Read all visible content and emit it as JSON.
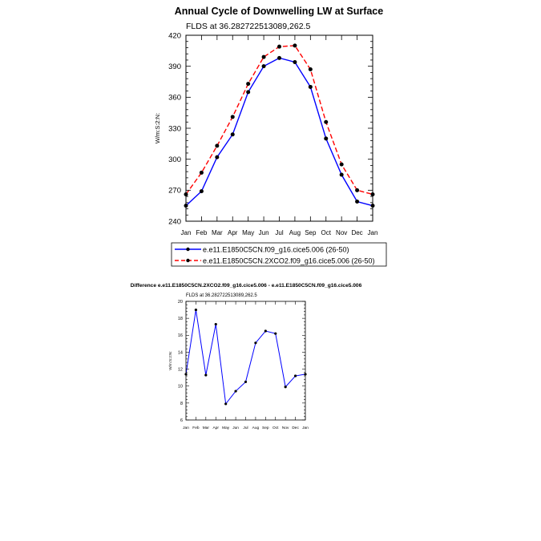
{
  "chart_data": [
    {
      "type": "line",
      "title": "Annual Cycle of Downwelling LW at Surface",
      "subtitle": "FLDS at 36.282722513089,262.5",
      "xlabel": "",
      "ylabel": "W/m:S:2:N:",
      "categories": [
        "Jan",
        "Feb",
        "Mar",
        "Apr",
        "May",
        "Jun",
        "Jul",
        "Aug",
        "Sep",
        "Oct",
        "Nov",
        "Dec",
        "Jan"
      ],
      "ylim": [
        240,
        420
      ],
      "yticks": [
        240,
        270,
        300,
        330,
        360,
        390,
        420
      ],
      "grid": false,
      "legend_position": "bottom",
      "series": [
        {
          "name": "e.e11.E1850C5CN.f09_g16.cice5.006 (26-50)",
          "color": "#0000ff",
          "dash": "solid",
          "values": [
            255,
            269,
            302,
            324,
            365,
            390,
            398,
            394,
            370,
            320,
            285,
            259,
            255
          ]
        },
        {
          "name": "e.e11.E1850C5CN.2XCO2.f09_g16.cice5.006 (26-50)",
          "color": "#ff0000",
          "dash": "dashed",
          "values": [
            266,
            287,
            313,
            341,
            373,
            399,
            409,
            410,
            387,
            336,
            295,
            270,
            266
          ]
        }
      ]
    },
    {
      "type": "line",
      "title": "Difference e.e11.E1850C5CN.2XCO2.f09_g16.cice5.006 - e.e11.E1850C5CN.f09_g16.cice5.006",
      "subtitle": "FLDS at 36.282722513089,262.5",
      "xlabel": "",
      "ylabel": "W/m:S:2:N:",
      "categories": [
        "Jan",
        "Feb",
        "Mar",
        "Apr",
        "May",
        "Jun",
        "Jul",
        "Aug",
        "Sep",
        "Oct",
        "Nov",
        "Dec",
        "Jan"
      ],
      "ylim": [
        6,
        20
      ],
      "yticks": [
        6,
        8,
        10,
        12,
        14,
        16,
        18,
        20
      ],
      "grid": false,
      "series": [
        {
          "color": "#0000ff",
          "dash": "solid",
          "values": [
            11.4,
            19.0,
            11.3,
            17.3,
            7.9,
            9.4,
            10.5,
            15.1,
            16.5,
            16.2,
            9.9,
            11.2,
            11.4
          ]
        }
      ]
    }
  ]
}
